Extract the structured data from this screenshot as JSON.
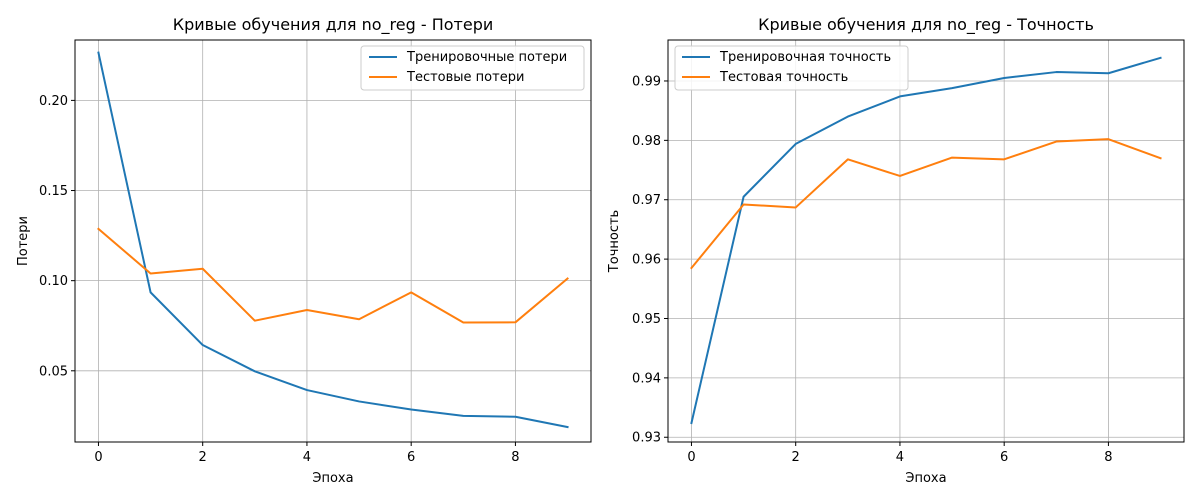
{
  "chart_data": [
    {
      "type": "line",
      "title": "Кривые обучения для no_reg - Потери",
      "xlabel": "Эпоха",
      "ylabel": "Потери",
      "grid": true,
      "legend_position": "top-right",
      "xlim": [
        -0.45,
        9.45
      ],
      "ylim": [
        0.0105,
        0.2335
      ],
      "xticks": [
        0,
        2,
        4,
        6,
        8
      ],
      "xtick_labels": [
        "0",
        "2",
        "4",
        "6",
        "8"
      ],
      "yticks": [
        0.05,
        0.1,
        0.15,
        0.2
      ],
      "ytick_labels": [
        "0.05",
        "0.10",
        "0.15",
        "0.20"
      ],
      "x": [
        0,
        1,
        2,
        3,
        4,
        5,
        6,
        7,
        8,
        9
      ],
      "series": [
        {
          "name": "Тренировочные потери",
          "color": "#1f77b4",
          "values": [
            0.2265,
            0.0935,
            0.0643,
            0.0497,
            0.0393,
            0.033,
            0.0285,
            0.025,
            0.0245,
            0.0188
          ]
        },
        {
          "name": "Тестовые потери",
          "color": "#ff7f0e",
          "values": [
            0.1287,
            0.104,
            0.1066,
            0.0778,
            0.0837,
            0.0786,
            0.0935,
            0.0768,
            0.0769,
            0.1012
          ]
        }
      ]
    },
    {
      "type": "line",
      "title": "Кривые обучения для no_reg - Точность",
      "xlabel": "Эпоха",
      "ylabel": "Точность",
      "grid": true,
      "legend_position": "top-left",
      "xlim": [
        -0.45,
        9.45
      ],
      "ylim": [
        0.9292,
        0.9969
      ],
      "xticks": [
        0,
        2,
        4,
        6,
        8
      ],
      "xtick_labels": [
        "0",
        "2",
        "4",
        "6",
        "8"
      ],
      "yticks": [
        0.93,
        0.94,
        0.95,
        0.96,
        0.97,
        0.98,
        0.99
      ],
      "ytick_labels": [
        "0.93",
        "0.94",
        "0.95",
        "0.96",
        "0.97",
        "0.98",
        "0.99"
      ],
      "x": [
        0,
        1,
        2,
        3,
        4,
        5,
        6,
        7,
        8,
        9
      ],
      "series": [
        {
          "name": "Тренировочная точность",
          "color": "#1f77b4",
          "values": [
            0.9324,
            0.9705,
            0.9794,
            0.984,
            0.9874,
            0.9888,
            0.9905,
            0.9915,
            0.9913,
            0.9939
          ]
        },
        {
          "name": "Тестовая точность",
          "color": "#ff7f0e",
          "values": [
            0.9585,
            0.9692,
            0.9687,
            0.9768,
            0.974,
            0.9771,
            0.9768,
            0.9798,
            0.9802,
            0.977
          ]
        }
      ]
    }
  ]
}
